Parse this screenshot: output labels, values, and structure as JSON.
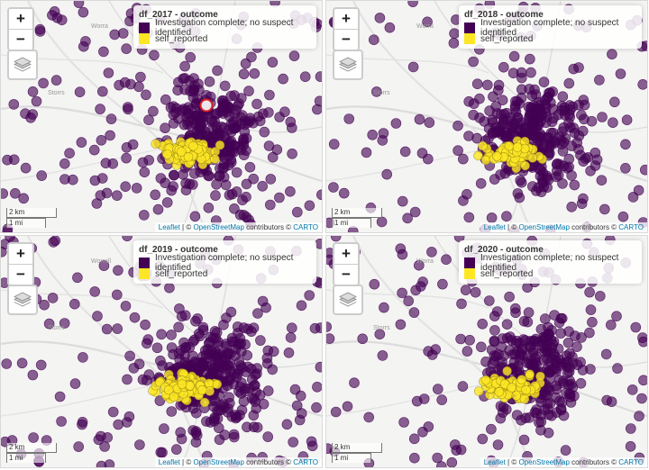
{
  "map": {
    "zoom_in": "+",
    "zoom_out": "−",
    "colors": {
      "investigation": "#440154",
      "self_reported": "#FDE725"
    },
    "scale": {
      "km": "2 km",
      "mi": "1 mi"
    },
    "attribution": {
      "leaflet": "Leaflet",
      "sep": " | © ",
      "osm": "OpenStreetMap",
      "contrib": " contributors © ",
      "carto": "CARTO"
    }
  },
  "panels": [
    {
      "legend_title": "df_2017 - outcome",
      "items": [
        "Investigation complete; no suspect identified",
        "self_reported"
      ],
      "places": {
        "p1": "Storrs",
        "p2": "Worra"
      },
      "cluster": {
        "purple": 430,
        "yellow": 80
      }
    },
    {
      "legend_title": "df_2018 - outcome",
      "items": [
        "Investigation complete; no suspect identified",
        "self_reported"
      ],
      "places": {
        "p1": "Storrs",
        "p2": "Worra"
      },
      "cluster": {
        "purple": 400,
        "yellow": 70
      }
    },
    {
      "legend_title": "df_2019 - outcome",
      "items": [
        "Investigation complete; no suspect identified",
        "self_reported"
      ],
      "places": {
        "p1": "Storrs",
        "p2": "Worrall"
      },
      "cluster": {
        "purple": 430,
        "yellow": 90
      }
    },
    {
      "legend_title": "df_2020 - outcome",
      "items": [
        "Investigation complete; no suspect identified",
        "self_reported"
      ],
      "places": {
        "p1": "Storrs",
        "p2": "Worra"
      },
      "cluster": {
        "purple": 380,
        "yellow": 75
      }
    }
  ]
}
